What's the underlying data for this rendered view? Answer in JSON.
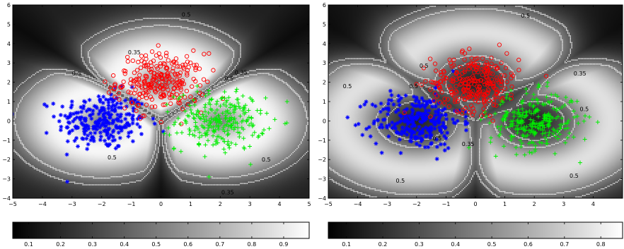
{
  "chart_data": [
    {
      "type": "scatter",
      "xlim": [
        -5,
        5
      ],
      "ylim": [
        -4,
        6
      ],
      "xticks": [
        "−5",
        "−4",
        "−3",
        "−2",
        "−1",
        "0",
        "1",
        "2",
        "3",
        "4",
        "5"
      ],
      "yticks": [
        "−4",
        "−3",
        "−2",
        "−1",
        "0",
        "1",
        "2",
        "3",
        "4",
        "5",
        "6"
      ],
      "contour_labels": [
        {
          "text": "0.5",
          "x": 0.85,
          "y": 5.4
        },
        {
          "text": "0.35",
          "x": -0.9,
          "y": 3.45
        },
        {
          "text": "0.5",
          "x": -2.85,
          "y": 2.35
        },
        {
          "text": "0.35",
          "x": 2.7,
          "y": 2.4
        },
        {
          "text": "0.5",
          "x": 2.3,
          "y": 2.1
        },
        {
          "text": "0.5",
          "x": -1.65,
          "y": -2.0
        },
        {
          "text": "0.5",
          "x": 3.55,
          "y": -2.1
        },
        {
          "text": "0.35",
          "x": 2.25,
          "y": -3.8
        }
      ],
      "colorbar": {
        "ticks": [
          "0.1",
          "0.2",
          "0.3",
          "0.4",
          "0.5",
          "0.6",
          "0.7",
          "0.8",
          "0.9"
        ],
        "range": [
          0.05,
          0.98
        ]
      },
      "series": [
        {
          "marker": "asterisk",
          "color": "#0000ff",
          "center": [
            -2.0,
            0.0
          ],
          "spread": [
            0.75,
            0.75
          ],
          "count": 260
        },
        {
          "marker": "circle",
          "color": "#ff0000",
          "center": [
            0.0,
            2.0
          ],
          "spread": [
            0.75,
            0.75
          ],
          "count": 260
        },
        {
          "marker": "plus",
          "color": "#00ee00",
          "center": [
            2.0,
            0.0
          ],
          "spread": [
            0.75,
            0.75
          ],
          "count": 260
        }
      ]
    },
    {
      "type": "scatter",
      "xlim": [
        -5,
        5
      ],
      "ylim": [
        -4,
        6
      ],
      "xticks": [
        "−5",
        "−4",
        "−3",
        "−2",
        "−1",
        "0",
        "1",
        "2",
        "3",
        "4"
      ],
      "yticks": [
        "−4",
        "−3",
        "−2",
        "−1",
        "0",
        "1",
        "2",
        "3",
        "4",
        "5",
        "6"
      ],
      "contour_labels": [
        {
          "text": "0.5",
          "x": 1.7,
          "y": 5.35
        },
        {
          "text": "0.5",
          "x": -1.75,
          "y": 2.75
        },
        {
          "text": "0.35",
          "x": 3.55,
          "y": 2.35
        },
        {
          "text": "0.5",
          "x": -4.35,
          "y": 1.7
        },
        {
          "text": "0.5",
          "x": -2.1,
          "y": 1.7
        },
        {
          "text": "0.5",
          "x": -1.3,
          "y": -1.0
        },
        {
          "text": "0.35",
          "x": -0.25,
          "y": -1.3
        },
        {
          "text": "0.5",
          "x": 3.7,
          "y": 0.5
        },
        {
          "text": "0.5",
          "x": -2.55,
          "y": -3.2
        },
        {
          "text": "0.5",
          "x": 3.35,
          "y": -2.95
        }
      ],
      "colorbar": {
        "ticks": [
          "0.1",
          "0.2",
          "0.3",
          "0.4",
          "0.5",
          "0.6",
          "0.7",
          "0.8"
        ],
        "range": [
          0.05,
          0.86
        ]
      },
      "series": [
        {
          "marker": "asterisk",
          "color": "#0000ff",
          "center": [
            -2.0,
            0.0
          ],
          "spread": [
            0.75,
            0.75
          ],
          "count": 260
        },
        {
          "marker": "circle",
          "color": "#ff0000",
          "center": [
            0.0,
            2.0
          ],
          "spread": [
            0.75,
            0.75
          ],
          "count": 260
        },
        {
          "marker": "plus",
          "color": "#00ee00",
          "center": [
            2.0,
            0.0
          ],
          "spread": [
            0.75,
            0.75
          ],
          "count": 260
        }
      ]
    }
  ]
}
